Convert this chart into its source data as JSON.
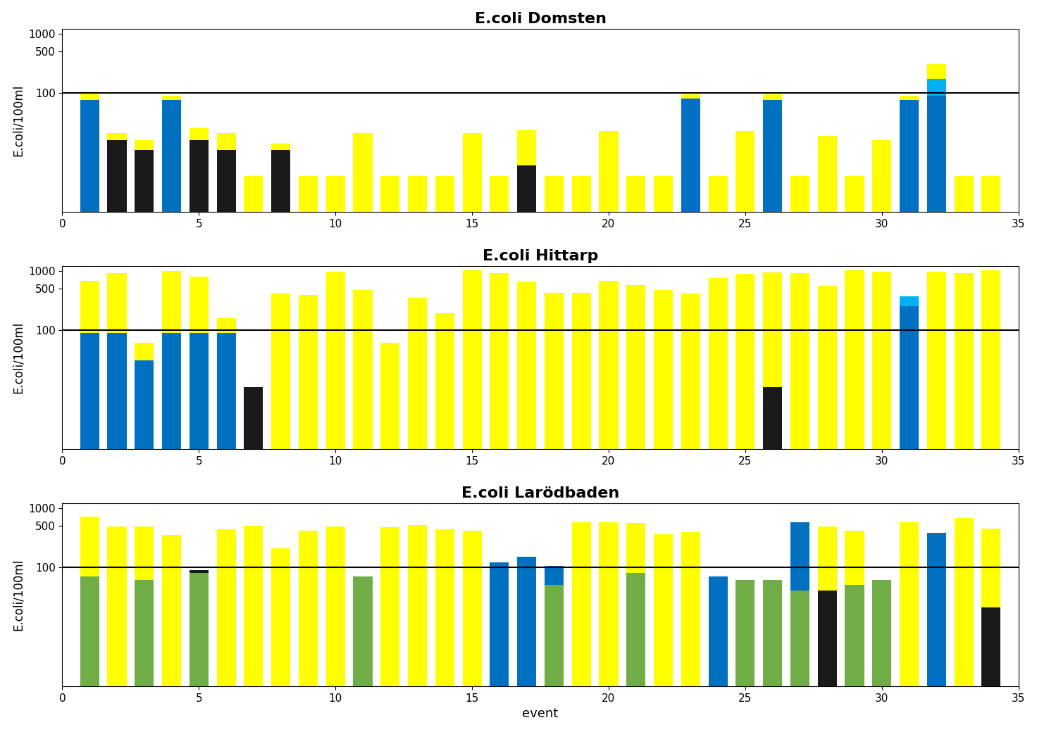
{
  "title1": "E.coli Domsten",
  "title2": "E.coli Hittarp",
  "title3": "E.coli Larödbaden",
  "ylabel": "E.coli/100ml",
  "xlabel": "event",
  "threshold": 100,
  "ylim": [
    1,
    1200
  ],
  "yticks": [
    100,
    500,
    1000
  ],
  "yticklabels": [
    "100",
    "500",
    "1000"
  ],
  "xlim": [
    0,
    35
  ],
  "xticks": [
    0,
    5,
    10,
    15,
    20,
    25,
    30,
    35
  ],
  "domsten_yellow": [
    30,
    5,
    5,
    15,
    10,
    10,
    3,
    3,
    3,
    3,
    20,
    3,
    3,
    3,
    20,
    3,
    18,
    3,
    3,
    22,
    3,
    3,
    15,
    3,
    22,
    20,
    3,
    18,
    3,
    15,
    15,
    140,
    3,
    3
  ],
  "domsten_blue": [
    75,
    0,
    0,
    75,
    0,
    0,
    0,
    0,
    0,
    0,
    0,
    0,
    0,
    0,
    0,
    0,
    0,
    0,
    0,
    0,
    0,
    0,
    80,
    0,
    0,
    75,
    0,
    0,
    0,
    0,
    75,
    90,
    0,
    0
  ],
  "domsten_black": [
    0,
    15,
    10,
    0,
    15,
    10,
    0,
    10,
    0,
    0,
    0,
    0,
    0,
    0,
    0,
    0,
    5,
    0,
    0,
    0,
    0,
    0,
    0,
    0,
    0,
    0,
    0,
    0,
    0,
    0,
    0,
    0,
    0,
    0
  ],
  "domsten_teal": [
    0,
    0,
    0,
    0,
    0,
    0,
    0,
    0,
    0,
    0,
    0,
    0,
    0,
    0,
    0,
    0,
    0,
    0,
    0,
    0,
    0,
    0,
    0,
    0,
    0,
    0,
    0,
    0,
    0,
    0,
    0,
    80,
    0,
    0
  ],
  "hittarp_yellow": [
    580,
    830,
    30,
    890,
    710,
    70,
    0,
    410,
    390,
    960,
    470,
    60,
    350,
    190,
    1010,
    920,
    650,
    420,
    420,
    670,
    580,
    470,
    410,
    760,
    880,
    920,
    920,
    560,
    1010,
    970,
    0,
    960,
    920,
    1010
  ],
  "hittarp_blue": [
    90,
    90,
    30,
    90,
    90,
    90,
    0,
    0,
    0,
    0,
    0,
    0,
    0,
    0,
    0,
    0,
    0,
    0,
    0,
    0,
    0,
    0,
    0,
    0,
    0,
    0,
    0,
    0,
    0,
    0,
    250,
    0,
    0,
    0
  ],
  "hittarp_black": [
    0,
    0,
    0,
    0,
    0,
    0,
    10,
    0,
    0,
    0,
    0,
    0,
    0,
    0,
    0,
    0,
    0,
    0,
    0,
    0,
    0,
    0,
    0,
    0,
    0,
    10,
    0,
    0,
    0,
    0,
    0,
    0,
    0,
    0
  ],
  "hittarp_teal": [
    0,
    0,
    0,
    0,
    0,
    0,
    0,
    0,
    0,
    0,
    0,
    0,
    0,
    0,
    0,
    0,
    0,
    0,
    0,
    0,
    0,
    0,
    0,
    0,
    0,
    0,
    0,
    0,
    0,
    0,
    120,
    0,
    0,
    0
  ],
  "larod_yellow": [
    650,
    490,
    430,
    350,
    0,
    430,
    500,
    210,
    410,
    490,
    0,
    470,
    520,
    440,
    410,
    0,
    0,
    0,
    580,
    570,
    470,
    360,
    390,
    0,
    0,
    0,
    0,
    440,
    360,
    0,
    580,
    0,
    670,
    430
  ],
  "larod_blue": [
    0,
    0,
    0,
    0,
    0,
    0,
    0,
    0,
    0,
    0,
    0,
    0,
    0,
    0,
    0,
    120,
    150,
    55,
    0,
    0,
    0,
    0,
    0,
    70,
    0,
    0,
    540,
    0,
    0,
    0,
    0,
    380,
    0,
    0
  ],
  "larod_green": [
    70,
    0,
    60,
    0,
    80,
    0,
    0,
    0,
    0,
    0,
    70,
    0,
    0,
    0,
    0,
    0,
    0,
    50,
    0,
    0,
    80,
    0,
    0,
    0,
    60,
    60,
    40,
    0,
    50,
    60,
    0,
    0,
    0,
    0
  ],
  "larod_black": [
    0,
    0,
    0,
    0,
    10,
    0,
    0,
    0,
    0,
    0,
    0,
    0,
    0,
    0,
    0,
    0,
    0,
    0,
    0,
    0,
    0,
    0,
    0,
    0,
    0,
    0,
    0,
    40,
    0,
    0,
    0,
    0,
    0,
    20
  ],
  "color_yellow": "#FFFF00",
  "color_blue": "#0070C0",
  "color_teal": "#00B0F0",
  "color_black": "#1A1A1A",
  "color_green": "#70AD47",
  "bar_width": 0.7,
  "background": "#FFFFFF"
}
